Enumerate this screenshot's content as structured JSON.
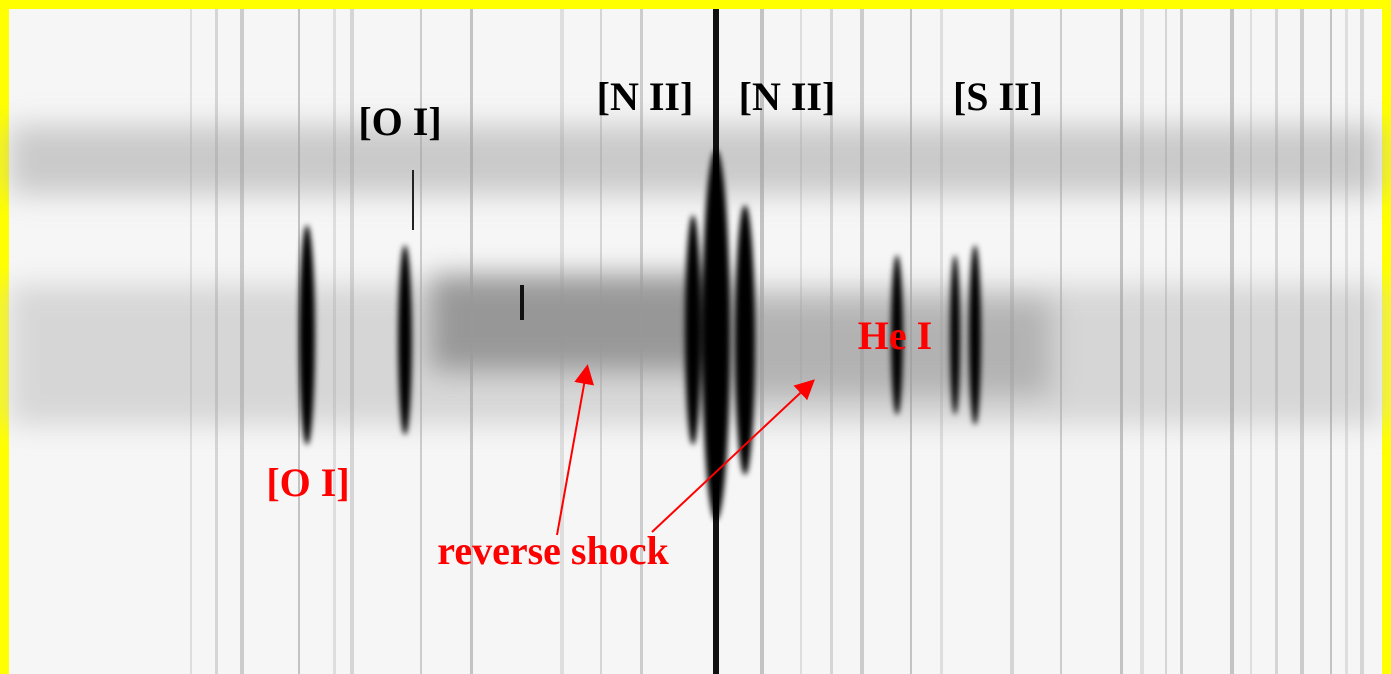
{
  "line_labels": [
    "[O I]",
    "[N II]",
    "[N II]",
    "[S II]"
  ],
  "annotations": [
    "[O I]",
    "He I",
    "reverse shock"
  ]
}
